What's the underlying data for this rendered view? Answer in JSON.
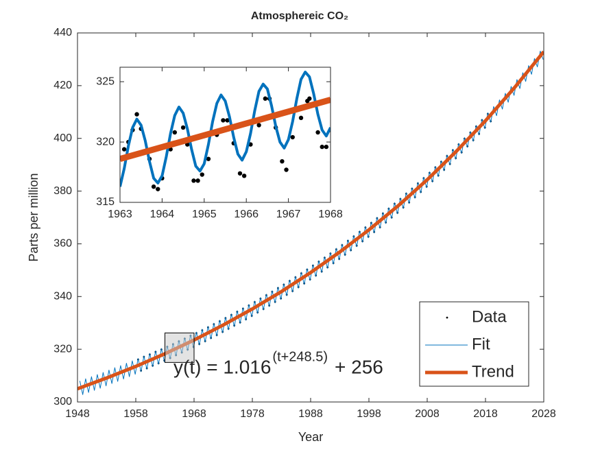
{
  "chart_data": [
    {
      "type": "line",
      "title": "Atmosphereic CO₂",
      "xlabel": "Year",
      "ylabel": "Parts per million",
      "xlim": [
        1948,
        2028
      ],
      "xticks": [
        1948,
        1958,
        1968,
        1978,
        1988,
        1998,
        2008,
        2018,
        2028
      ],
      "ylim": [
        300,
        440
      ],
      "yticks": [
        300,
        320,
        340,
        360,
        380,
        400,
        420,
        440
      ],
      "legend": "southeast",
      "annotation": {
        "text": "y(t) = 1.016",
        "superscript": "(t+248.5)",
        "suffix": "+ 256",
        "color": "#D95319"
      },
      "series": [
        {
          "name": "Data",
          "mode": "markers",
          "color": "#000000",
          "marker_size": 1.4,
          "x": [
            1958.4,
            1958.9,
            1959.4,
            1959.9,
            1960.4,
            1960.9,
            1961.4,
            1961.9,
            1962.4,
            1962.9,
            1963.4,
            1963.9,
            1964.4,
            1964.9,
            1965.4,
            1965.9,
            1966.4,
            1966.9,
            1967.4,
            1967.9,
            1968.4,
            1968.9,
            1969.4,
            1969.9,
            1970.4,
            1970.9,
            1971.4,
            1971.9,
            1972.4,
            1972.9,
            1973.4,
            1973.9,
            1974.4,
            1974.9,
            1975.4,
            1975.9,
            1976.4,
            1976.9,
            1977.4,
            1977.9,
            1978.4,
            1978.9,
            1979.4,
            1979.9,
            1980.4,
            1980.9,
            1981.4,
            1981.9,
            1982.4,
            1982.9,
            1983.4,
            1983.9,
            1984.4,
            1984.9,
            1985.4,
            1985.9,
            1986.4,
            1986.9,
            1987.4,
            1987.9,
            1988.4,
            1988.9,
            1989.4,
            1989.9,
            1990.4,
            1990.9,
            1991.4,
            1991.9,
            1992.4,
            1992.9,
            1993.4,
            1993.9,
            1994.4,
            1994.9,
            1995.4,
            1995.9,
            1996.4,
            1996.9,
            1997.4,
            1997.9,
            1998.4,
            1998.9,
            1999.4,
            1999.9,
            2000.4,
            2000.9,
            2001.4,
            2001.9,
            2002.4,
            2002.9,
            2003.4,
            2003.9,
            2004.4,
            2004.9,
            2005.4,
            2005.9,
            2006.4,
            2006.9,
            2007.4,
            2007.9,
            2008.4,
            2008.9,
            2009.4,
            2009.9,
            2010.4,
            2010.9,
            2011.4,
            2011.9,
            2012.4,
            2012.9,
            2013.4,
            2013.9,
            2014.4,
            2014.9,
            2015.4,
            2015.9,
            2016.4,
            2016.9,
            2017.4,
            2017.9,
            2018.4,
            2018.9
          ],
          "values": [
            316.1,
            311.9,
            317.1,
            312.8,
            318.0,
            313.8,
            319.0,
            314.7,
            319.9,
            315.7,
            320.9,
            316.7,
            321.9,
            317.8,
            323.0,
            318.8,
            324.0,
            319.9,
            325.1,
            320.9,
            326.1,
            322.0,
            327.2,
            323.1,
            328.3,
            324.3,
            329.5,
            325.4,
            330.6,
            326.6,
            331.8,
            327.8,
            333.0,
            329.0,
            334.2,
            330.2,
            335.4,
            331.4,
            336.6,
            332.7,
            337.9,
            334.0,
            339.2,
            335.3,
            340.5,
            336.6,
            341.8,
            338.0,
            343.2,
            339.3,
            344.5,
            340.7,
            345.9,
            342.1,
            347.3,
            343.6,
            348.8,
            345.0,
            350.2,
            346.5,
            351.7,
            348.0,
            353.2,
            349.5,
            354.7,
            351.1,
            356.3,
            352.7,
            357.9,
            354.3,
            359.5,
            355.9,
            361.1,
            357.6,
            362.8,
            359.3,
            364.5,
            361.0,
            366.2,
            362.7,
            367.9,
            364.5,
            369.7,
            366.3,
            371.5,
            368.1,
            373.3,
            370.0,
            375.2,
            371.8,
            377.0,
            373.8,
            379.0,
            375.7,
            380.9,
            377.7,
            382.9,
            379.7,
            384.9,
            381.7,
            386.9,
            383.8,
            389.0,
            385.9,
            391.1,
            388.1,
            393.3,
            390.3,
            395.5,
            392.5,
            397.7,
            394.7,
            399.9,
            397.0,
            402.2,
            399.3,
            404.5,
            401.7,
            406.9,
            404.1,
            409.3,
            406.5
          ]
        },
        {
          "name": "Fit",
          "mode": "line",
          "color": "#0072BD",
          "line_width": 1,
          "x": [
            1948.4,
            1948.9,
            1949.4,
            1949.9,
            1950.4,
            1950.9,
            1951.4,
            1951.9,
            1952.4,
            1952.9,
            1953.4,
            1953.9,
            1954.4,
            1954.9,
            1955.4,
            1955.9,
            1956.4,
            1956.9,
            1957.4,
            1957.9,
            1958.4,
            1958.9,
            1959.4,
            1959.9,
            1960.4,
            1960.9,
            1961.4,
            1961.9,
            1962.4,
            1962.9,
            1963.4,
            1963.9,
            1964.4,
            1964.9,
            1965.4,
            1965.9,
            1966.4,
            1966.9,
            1967.4,
            1967.9,
            1968.4,
            1968.9,
            1969.4,
            1969.9,
            1970.4,
            1970.9,
            1971.4,
            1971.9,
            1972.4,
            1972.9,
            1973.4,
            1973.9,
            1974.4,
            1974.9,
            1975.4,
            1975.9,
            1976.4,
            1976.9,
            1977.4,
            1977.9,
            1978.4,
            1978.9,
            1979.4,
            1979.9,
            1980.4,
            1980.9,
            1981.4,
            1981.9,
            1982.4,
            1982.9,
            1983.4,
            1983.9,
            1984.4,
            1984.9,
            1985.4,
            1985.9,
            1986.4,
            1986.9,
            1987.4,
            1987.9,
            1988.4,
            1988.9,
            1989.4,
            1989.9,
            1990.4,
            1990.9,
            1991.4,
            1991.9,
            1992.4,
            1992.9,
            1993.4,
            1993.9,
            1994.4,
            1994.9,
            1995.4,
            1995.9,
            1996.4,
            1996.9,
            1997.4,
            1997.9,
            1998.4,
            1998.9,
            1999.4,
            1999.9,
            2000.4,
            2000.9,
            2001.4,
            2001.9,
            2002.4,
            2002.9,
            2003.4,
            2003.9,
            2004.4,
            2004.9,
            2005.4,
            2005.9,
            2006.4,
            2006.9,
            2007.4,
            2007.9,
            2008.4,
            2008.9,
            2009.4,
            2009.9,
            2010.4,
            2010.9,
            2011.4,
            2011.9,
            2012.4,
            2012.9,
            2013.4,
            2013.9,
            2014.4,
            2014.9,
            2015.4,
            2015.9,
            2016.4,
            2016.9,
            2017.4,
            2017.9,
            2018.4,
            2018.9,
            2019.4,
            2019.9,
            2020.4,
            2020.9,
            2021.4,
            2021.9,
            2022.4,
            2022.9,
            2023.4,
            2023.9,
            2024.4,
            2024.9,
            2025.4,
            2025.9,
            2026.4,
            2026.9,
            2027.4,
            2027.9
          ],
          "values": [
            308.0,
            302.8,
            308.8,
            303.6,
            309.6,
            304.4,
            310.4,
            305.2,
            311.2,
            306.1,
            312.1,
            307.0,
            313.0,
            307.8,
            313.8,
            308.7,
            314.7,
            309.6,
            315.6,
            310.5,
            316.5,
            311.5,
            317.5,
            312.4,
            318.4,
            313.4,
            319.4,
            314.3,
            320.3,
            315.3,
            321.3,
            316.3,
            322.3,
            317.4,
            323.4,
            318.4,
            324.4,
            319.5,
            325.5,
            320.5,
            326.5,
            321.6,
            327.6,
            322.7,
            328.7,
            323.9,
            329.9,
            325.0,
            331.0,
            326.2,
            332.2,
            327.4,
            333.4,
            328.6,
            334.6,
            329.8,
            335.8,
            331.0,
            337.0,
            332.3,
            338.3,
            333.6,
            339.6,
            334.9,
            340.9,
            336.2,
            342.2,
            337.6,
            343.6,
            338.9,
            344.9,
            340.3,
            346.3,
            341.7,
            347.7,
            343.2,
            349.2,
            344.6,
            350.6,
            346.1,
            352.1,
            347.6,
            353.6,
            349.1,
            355.1,
            350.7,
            356.7,
            352.3,
            358.3,
            353.9,
            359.9,
            355.5,
            361.5,
            357.2,
            363.2,
            358.9,
            364.9,
            360.6,
            366.6,
            362.3,
            368.3,
            364.1,
            370.1,
            365.9,
            371.9,
            367.7,
            373.7,
            369.6,
            375.6,
            371.4,
            377.4,
            373.4,
            379.4,
            375.3,
            381.3,
            377.3,
            383.3,
            379.3,
            385.3,
            381.3,
            387.3,
            383.4,
            389.4,
            385.5,
            391.5,
            387.7,
            393.7,
            389.9,
            395.9,
            392.1,
            398.1,
            394.3,
            400.3,
            396.6,
            402.6,
            398.9,
            404.9,
            401.3,
            407.3,
            403.7,
            409.7,
            406.1,
            412.1,
            408.6,
            414.6,
            411.1,
            417.1,
            413.7,
            419.7,
            416.3,
            422.3,
            418.9,
            424.9,
            421.6,
            427.6,
            424.3,
            430.3,
            427.1,
            433.1,
            429.9
          ]
        },
        {
          "name": "Trend",
          "mode": "line",
          "color": "#D95319",
          "line_width": 5,
          "x": [
            1948,
            1953,
            1958,
            1963,
            1968,
            1973,
            1978,
            1983,
            1988,
            1993,
            1998,
            2003,
            2008,
            2013,
            2018,
            2023,
            2028
          ],
          "values": [
            305.0,
            309.1,
            313.5,
            318.3,
            323.5,
            329.2,
            335.3,
            341.9,
            349.1,
            356.9,
            365.3,
            374.4,
            384.3,
            395.1,
            406.7,
            419.3,
            432.9
          ]
        }
      ]
    },
    {
      "type": "line",
      "xlim": [
        1963,
        1968
      ],
      "xticks": [
        1963,
        1964,
        1965,
        1966,
        1967,
        1968
      ],
      "ylim": [
        315,
        326.2
      ],
      "yticks": [
        315,
        320,
        325
      ],
      "series": [
        {
          "mode": "markers",
          "color": "#000000",
          "marker_size": 3.2,
          "x": [
            1963.0,
            1963.1,
            1963.2,
            1963.3,
            1963.4,
            1963.5,
            1963.7,
            1963.8,
            1963.9,
            1964.0,
            1964.2,
            1964.3,
            1964.5,
            1964.6,
            1964.75,
            1964.85,
            1964.95,
            1965.1,
            1965.3,
            1965.45,
            1965.55,
            1965.7,
            1965.85,
            1965.95,
            1966.1,
            1966.3,
            1966.45,
            1966.55,
            1966.7,
            1966.85,
            1966.95,
            1967.1,
            1967.3,
            1967.45,
            1967.5,
            1967.7,
            1967.8,
            1967.9,
            1968.0
          ],
          "values": [
            318.7,
            319.4,
            320.0,
            321.0,
            322.3,
            321.1,
            318.6,
            316.3,
            316.1,
            317.0,
            319.4,
            320.8,
            321.2,
            319.8,
            316.8,
            316.8,
            317.3,
            318.6,
            320.6,
            321.8,
            321.8,
            319.9,
            317.4,
            317.2,
            319.8,
            321.4,
            323.6,
            323.6,
            321.2,
            318.4,
            317.7,
            320.4,
            322.0,
            323.4,
            323.6,
            320.8,
            319.6,
            319.6,
            321.0
          ]
        },
        {
          "mode": "line",
          "color": "#0072BD",
          "line_width": 4,
          "x": [
            1963.0,
            1963.1,
            1963.2,
            1963.3,
            1963.4,
            1963.5,
            1963.6,
            1963.7,
            1963.8,
            1963.9,
            1964.0,
            1964.1,
            1964.2,
            1964.3,
            1964.4,
            1964.5,
            1964.6,
            1964.7,
            1964.8,
            1964.9,
            1965.0,
            1965.1,
            1965.2,
            1965.3,
            1965.4,
            1965.5,
            1965.6,
            1965.7,
            1965.8,
            1965.9,
            1966.0,
            1966.1,
            1966.2,
            1966.3,
            1966.4,
            1966.5,
            1966.6,
            1966.7,
            1966.8,
            1966.9,
            1967.0,
            1967.1,
            1967.2,
            1967.3,
            1967.4,
            1967.5,
            1967.6,
            1967.7,
            1967.8,
            1967.9,
            1968.0
          ],
          "values": [
            316.3,
            317.8,
            319.7,
            321.2,
            321.9,
            321.4,
            320.1,
            318.4,
            317.0,
            316.6,
            317.2,
            318.8,
            320.7,
            322.2,
            322.9,
            322.4,
            321.1,
            319.4,
            318.0,
            317.6,
            318.2,
            319.8,
            321.7,
            323.2,
            323.9,
            323.4,
            322.1,
            320.4,
            319.0,
            318.5,
            319.2,
            320.7,
            322.6,
            324.2,
            324.8,
            324.4,
            323.0,
            321.3,
            320.0,
            319.5,
            320.2,
            321.7,
            323.6,
            325.2,
            325.8,
            325.4,
            324.0,
            322.3,
            321.0,
            320.5,
            321.2
          ]
        },
        {
          "mode": "line",
          "color": "#D95319",
          "line_width": 9,
          "x": [
            1963,
            1968
          ],
          "values": [
            318.6,
            323.5
          ]
        }
      ]
    }
  ]
}
